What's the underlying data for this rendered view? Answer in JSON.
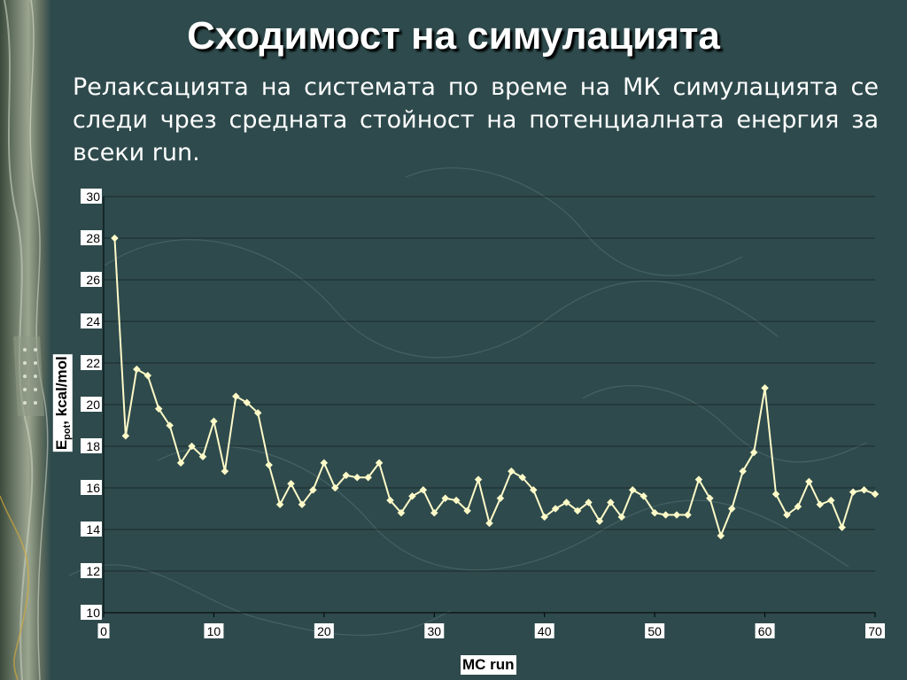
{
  "slide": {
    "title": "Сходимост на симулацията",
    "body": "Релаксацията на системата по време на МК симулацията се следи чрез средната стойност на потенциалната енергия за всеки run."
  },
  "colors": {
    "background": "#2e4a4c",
    "line": "#fffbc8",
    "text": "#ffffff",
    "axis_text": "#000000"
  },
  "chart_data": {
    "type": "line",
    "title": "",
    "xlabel": "MC run",
    "ylabel_main": "E",
    "ylabel_sub": "pot",
    "ylabel_rest": ", kcal/mol",
    "xlim": [
      0,
      70
    ],
    "ylim": [
      10,
      30
    ],
    "xticks": [
      0,
      10,
      20,
      30,
      40,
      50,
      60,
      70
    ],
    "yticks": [
      10,
      12,
      14,
      16,
      18,
      20,
      22,
      24,
      26,
      28,
      30
    ],
    "grid": true,
    "marker": "diamond",
    "x": [
      1,
      2,
      3,
      4,
      5,
      6,
      7,
      8,
      9,
      10,
      11,
      12,
      13,
      14,
      15,
      16,
      17,
      18,
      19,
      20,
      21,
      22,
      23,
      24,
      25,
      26,
      27,
      28,
      29,
      30,
      31,
      32,
      33,
      34,
      35,
      36,
      37,
      38,
      39,
      40,
      41,
      42,
      43,
      44,
      45,
      46,
      47,
      48,
      49,
      50,
      51,
      52,
      53,
      54,
      55,
      56,
      57,
      58,
      59,
      60,
      61,
      62,
      63,
      64,
      65,
      66,
      67,
      68,
      69,
      70
    ],
    "y": [
      28.0,
      18.5,
      21.7,
      21.4,
      19.8,
      19.0,
      17.2,
      18.0,
      17.5,
      19.2,
      16.8,
      20.4,
      20.1,
      19.6,
      17.1,
      15.2,
      16.2,
      15.2,
      15.9,
      17.2,
      16.0,
      16.6,
      16.5,
      16.5,
      17.2,
      15.4,
      14.8,
      15.6,
      15.9,
      14.8,
      15.5,
      15.4,
      14.9,
      16.4,
      14.3,
      15.5,
      16.8,
      16.5,
      15.9,
      14.6,
      15.0,
      15.3,
      14.9,
      15.3,
      14.4,
      15.3,
      14.6,
      15.9,
      15.6,
      14.8,
      14.7,
      14.7,
      14.7,
      16.4,
      15.5,
      13.7,
      15.0,
      16.8,
      17.7,
      20.8,
      15.7,
      14.7,
      15.1,
      16.3,
      15.2,
      15.4,
      14.1,
      15.8,
      15.9,
      15.7
    ]
  }
}
